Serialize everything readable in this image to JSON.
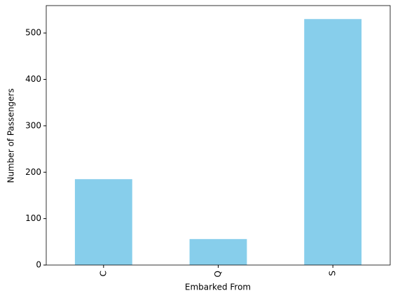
{
  "chart_data": {
    "type": "bar",
    "x_label": "Embarked From",
    "y_label": "Number of Passengers",
    "categories": [
      "C",
      "Q",
      "S"
    ],
    "values": [
      185,
      56,
      530
    ],
    "color": "#87ceeb",
    "ylim": [
      0,
      559
    ],
    "yticks": [
      0,
      100,
      200,
      300,
      400,
      500
    ]
  }
}
